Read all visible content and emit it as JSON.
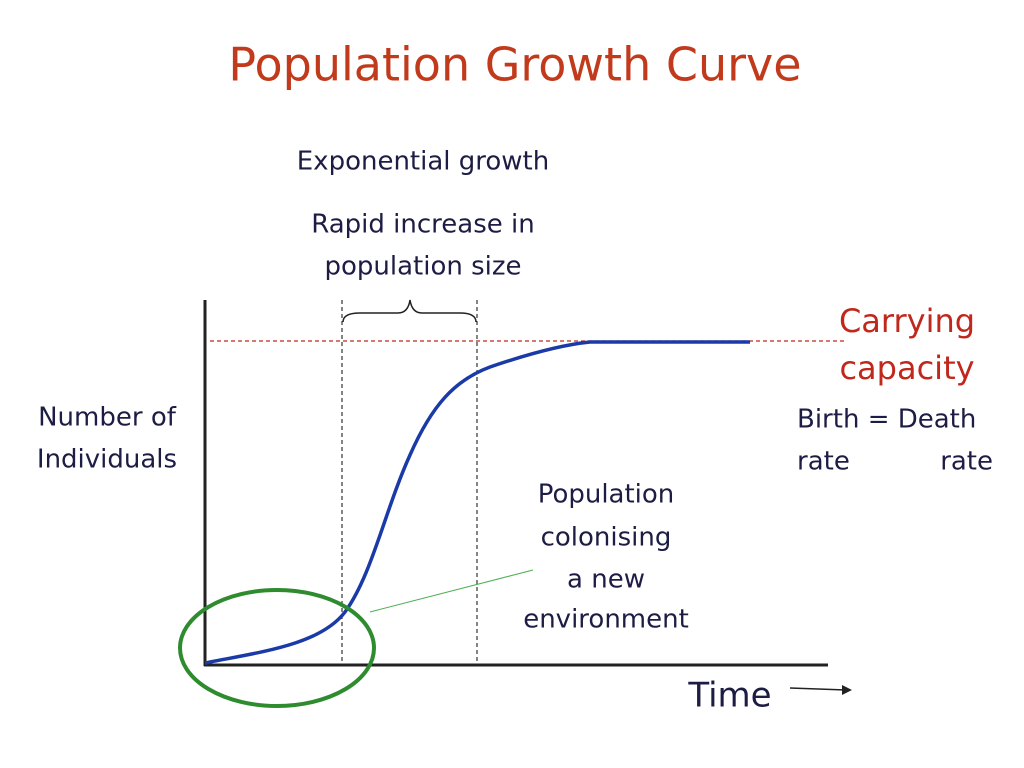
{
  "title": "Population Growth Curve",
  "exponential": {
    "heading": "Exponential growth",
    "lines": [
      "Rapid increase in",
      "population size"
    ]
  },
  "carrying_capacity": {
    "lines": [
      "Carrying",
      "capacity"
    ]
  },
  "y_axis": {
    "lines": [
      "Number of",
      "Individuals"
    ]
  },
  "birth_death": {
    "line1": "Birth = Death",
    "rate_left": "rate",
    "rate_right": "rate"
  },
  "colonising": {
    "lines": [
      "Population",
      "colonising",
      "a new",
      "environment"
    ]
  },
  "x_axis": {
    "label": "Time"
  }
}
